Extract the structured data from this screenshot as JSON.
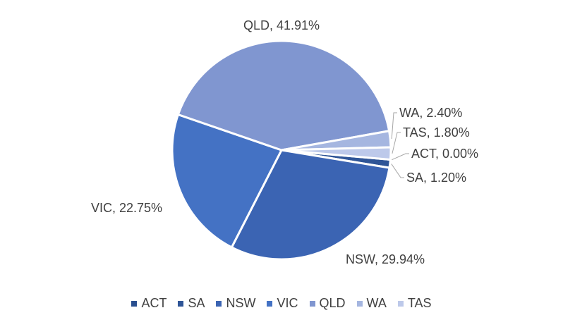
{
  "chart_data": {
    "type": "pie",
    "title": "",
    "slices": [
      {
        "label": "ACT",
        "value": 0.0,
        "data_label": "ACT, 0.00%",
        "color": "#2a4f8f"
      },
      {
        "label": "SA",
        "value": 1.2,
        "data_label": "SA, 1.20%",
        "color": "#2f5597"
      },
      {
        "label": "NSW",
        "value": 29.94,
        "data_label": "NSW, 29.94%",
        "color": "#3b64b3"
      },
      {
        "label": "VIC",
        "value": 22.75,
        "data_label": "VIC, 22.75%",
        "color": "#4472c4"
      },
      {
        "label": "QLD",
        "value": 41.91,
        "data_label": "QLD, 41.91%",
        "color": "#8096d0"
      },
      {
        "label": "WA",
        "value": 2.4,
        "data_label": "WA, 2.40%",
        "color": "#a5b6e0"
      },
      {
        "label": "TAS",
        "value": 1.8,
        "data_label": "TAS, 1.80%",
        "color": "#bdc9ea"
      }
    ],
    "legend": {
      "position": "bottom",
      "entries": [
        "ACT",
        "SA",
        "NSW",
        "VIC",
        "QLD",
        "WA",
        "TAS"
      ]
    },
    "label_color": "#404040",
    "leader_line_color": "#a6a6a6"
  }
}
